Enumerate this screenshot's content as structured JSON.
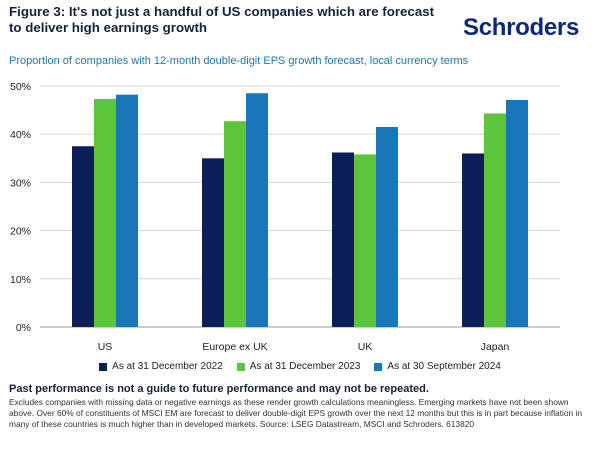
{
  "header": {
    "title": "Figure 3: It's not just a handful of US companies which are forecast to deliver high earnings growth",
    "logo_text": "Schroders",
    "subtitle": "Proportion of companies with 12-month double-digit EPS growth forecast, local currency terms"
  },
  "chart_data": {
    "type": "bar",
    "categories": [
      "US",
      "Europe ex UK",
      "UK",
      "Japan"
    ],
    "series": [
      {
        "name": "As at 31 December 2022",
        "color": "#0c1f5a",
        "values": [
          37.5,
          35.0,
          36.2,
          36.0
        ]
      },
      {
        "name": "As at 31 December 2023",
        "color": "#5cc53c",
        "values": [
          47.3,
          42.7,
          35.8,
          44.3
        ]
      },
      {
        "name": "As at 30 September 2024",
        "color": "#1777b8",
        "values": [
          48.2,
          48.5,
          41.5,
          47.1
        ]
      }
    ],
    "yticks": [
      "0%",
      "10%",
      "20%",
      "30%",
      "40%",
      "50%"
    ],
    "ylim": [
      0,
      50
    ],
    "grid": true,
    "legend": "bottom"
  },
  "footer": {
    "disclaimer": "Past performance is not a guide to future performance and may not be repeated.",
    "notes": "Excludes companies with missing data or negative earnings as these render growth calculations meaningless. Emerging markets have not been shown above. Over 60% of constituents of MSCI EM are forecast to deliver double-digit EPS growth over the next 12 months but this is in part because inflation in many of these countries is much higher than in developed markets. Source: LSEG Datastream, MSCI and Schroders. 613820"
  }
}
